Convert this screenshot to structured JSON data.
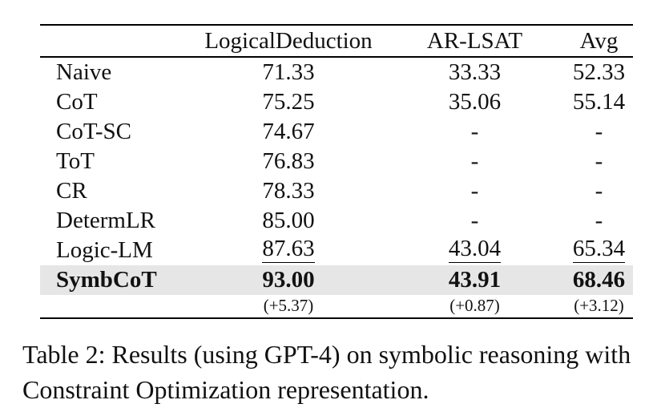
{
  "table": {
    "columns": [
      "",
      "LogicalDeduction",
      "AR-LSAT",
      "Avg"
    ],
    "rows": [
      {
        "method": "Naive",
        "values": [
          "71.33",
          "33.33",
          "52.33"
        ]
      },
      {
        "method": "CoT",
        "values": [
          "75.25",
          "35.06",
          "55.14"
        ]
      },
      {
        "method": "CoT-SC",
        "values": [
          "74.67",
          "-",
          "-"
        ]
      },
      {
        "method": "ToT",
        "values": [
          "76.83",
          "-",
          "-"
        ]
      },
      {
        "method": "CR",
        "values": [
          "78.33",
          "-",
          "-"
        ]
      },
      {
        "method": "DetermLR",
        "values": [
          "85.00",
          "-",
          "-"
        ]
      },
      {
        "method": "Logic-LM",
        "values": [
          "87.63",
          "43.04",
          "65.34"
        ]
      },
      {
        "method": "SymbCoT",
        "values": [
          "93.00",
          "43.91",
          "68.46"
        ]
      }
    ],
    "improvements": [
      "(+5.37)",
      "(+0.87)",
      "(+3.12)"
    ],
    "highlight_color": "#e6e6e6"
  },
  "caption": "Table 2: Results (using GPT-4) on symbolic reasoning with Constraint Optimization representation."
}
